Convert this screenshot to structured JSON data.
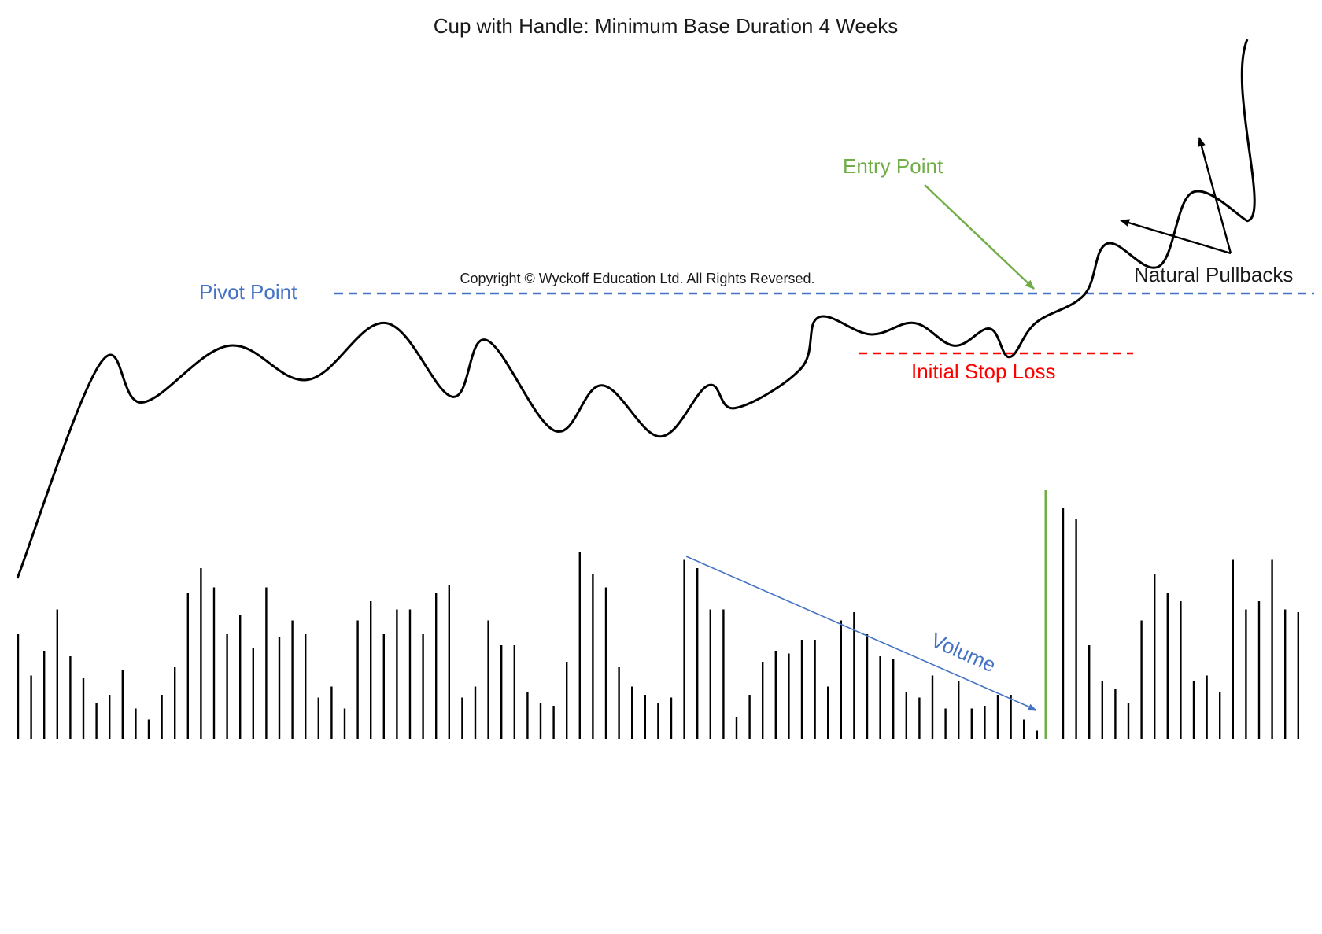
{
  "title": "Cup with Handle: Minimum Base Duration 4 Weeks",
  "copyright": "Copyright © Wyckoff Education Ltd. All Rights Reversed.",
  "labels": {
    "pivot_point": "Pivot Point",
    "entry_point": "Entry Point",
    "natural_pullbacks": "Natural Pullbacks",
    "initial_stop_loss": "Initial Stop Loss",
    "volume": "Volume"
  },
  "colors": {
    "price_line": "#000000",
    "pivot_line": "#4472c4",
    "pivot_label": "#4472c4",
    "entry": "#70ad47",
    "stop_loss": "#ff0000",
    "volume_arrow": "#4472c4",
    "volume_bars": "#000000",
    "breakout_bar": "#70ad47",
    "text": "#1a1a1a"
  },
  "chart_data": {
    "type": "line",
    "price_turning_points": [
      5,
      43,
      36,
      46,
      40,
      50,
      37,
      47,
      31,
      39,
      30,
      39,
      35,
      42,
      51,
      48,
      50,
      46,
      49,
      44,
      50,
      55,
      64,
      60,
      73,
      68,
      77
    ],
    "pivot_level": 50,
    "stop_loss_level": 46,
    "volume": [
      38,
      23,
      32,
      47,
      30,
      22,
      13,
      16,
      25,
      11,
      7,
      16,
      26,
      53,
      62,
      55,
      38,
      45,
      33,
      55,
      37,
      43,
      38,
      15,
      19,
      11,
      43,
      50,
      38,
      47,
      47,
      38,
      53,
      56,
      15,
      19,
      43,
      34,
      34,
      17,
      13,
      12,
      28,
      68,
      60,
      55,
      26,
      19,
      16,
      13,
      15,
      65,
      62,
      47,
      47,
      8,
      16,
      28,
      32,
      31,
      36,
      36,
      19,
      43,
      46,
      38,
      30,
      29,
      17,
      15,
      23,
      11,
      21,
      11,
      12,
      16,
      16,
      7,
      3,
      91,
      84,
      80,
      34,
      21,
      18,
      13,
      43,
      60,
      53,
      50,
      21,
      23,
      17,
      65,
      47,
      50,
      65,
      47,
      46
    ],
    "breakout_volume_index": 79
  }
}
